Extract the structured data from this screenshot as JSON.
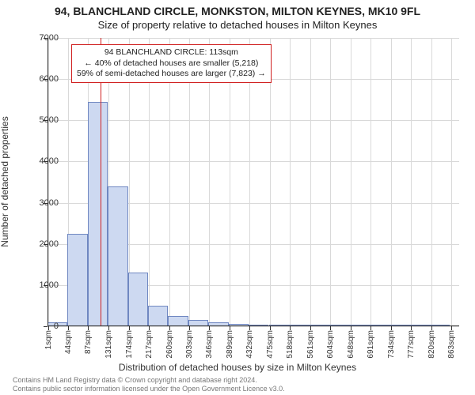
{
  "title_line1": "94, BLANCHLAND CIRCLE, MONKSTON, MILTON KEYNES, MK10 9FL",
  "title_line2": "Size of property relative to detached houses in Milton Keynes",
  "y_axis_title": "Number of detached properties",
  "x_axis_title": "Distribution of detached houses by size in Milton Keynes",
  "footer_line1": "Contains HM Land Registry data © Crown copyright and database right 2024.",
  "footer_line2": "Contains public sector information licensed under the Open Government Licence v3.0.",
  "grid_color": "#d9d9d9",
  "axis_color": "#333333",
  "bar_fill": "#cdd9f1",
  "bar_border": "#6f87c1",
  "marker_color": "#d02020",
  "background_color": "#ffffff",
  "chart": {
    "type": "histogram",
    "x_min": 0,
    "x_max": 880,
    "bin_width_data": 43,
    "y_min": 0,
    "y_max": 7000,
    "y_tick_step": 1000,
    "x_ticks": [
      1,
      44,
      87,
      131,
      174,
      217,
      260,
      303,
      346,
      389,
      432,
      475,
      518,
      561,
      604,
      648,
      691,
      734,
      777,
      820,
      863
    ],
    "x_tick_suffix": "sqm",
    "values": [
      100,
      2250,
      5450,
      3400,
      1300,
      500,
      250,
      150,
      100,
      60,
      45,
      35,
      25,
      18,
      12,
      9,
      6,
      4,
      3,
      2
    ],
    "marker_value": 113,
    "annotation": {
      "line1": "94 BLANCHLAND CIRCLE: 113sqm",
      "line2": "← 40% of detached houses are smaller (5,218)",
      "line3": "59% of semi-detached houses are larger (7,823) →"
    }
  }
}
